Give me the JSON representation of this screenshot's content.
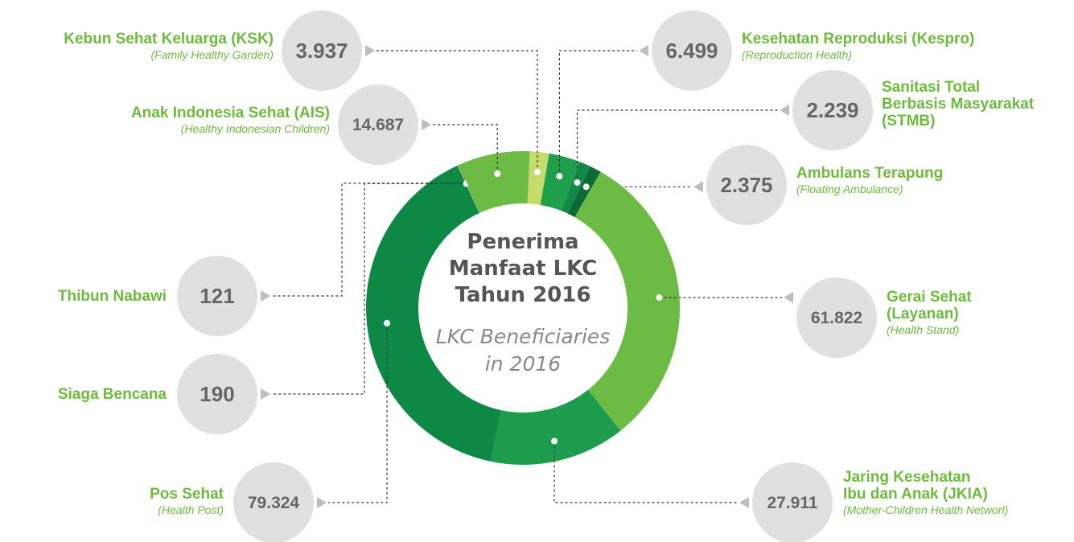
{
  "chart_data": {
    "type": "donut",
    "title": "Penerima\nManfaat LKC\nTahun 2016",
    "subtitle": "LKC Beneficiaries\nin 2016",
    "categories": [
      "Kebun Sehat Keluarga (KSK)",
      "Kesehatan Reproduksi (Kespro)",
      "Sanitasi Total\nBerbasis Masyarakat\n(STMB)",
      "Ambulans Terapung",
      "Gerai Sehat\n(Layanan)",
      "Jaring Kesehatan\nIbu dan Anak (JKIA)",
      "Pos Sehat",
      "Siaga Bencana",
      "Thibun Nabawi",
      "Anak Indonesia Sehat (AIS)"
    ],
    "sublabels": [
      "(Family Healthy Garden)",
      "(Reproduction Health)",
      null,
      "(Floating Ambulance)",
      "(Health Stand)",
      "(Mother-Children Health Networl)",
      "(Health Post)",
      null,
      null,
      "(Healthy Indonesian Children)"
    ],
    "values": [
      3937,
      6499,
      2239,
      2375,
      61822,
      27911,
      79324,
      190,
      121,
      14687
    ],
    "value_labels": [
      "3.937",
      "6.499",
      "2.239",
      "2.375",
      "61.822",
      "27.911",
      "79.324",
      "190",
      "121",
      "14.687"
    ],
    "colors": [
      "#c6dc6a",
      "#1f9e4c",
      "#108a46",
      "#0b6b37",
      "#6cbb45",
      "#1c9c4c",
      "#0e8845",
      "#c6dc6a",
      "#1c6a3a",
      "#6cbb45"
    ]
  }
}
